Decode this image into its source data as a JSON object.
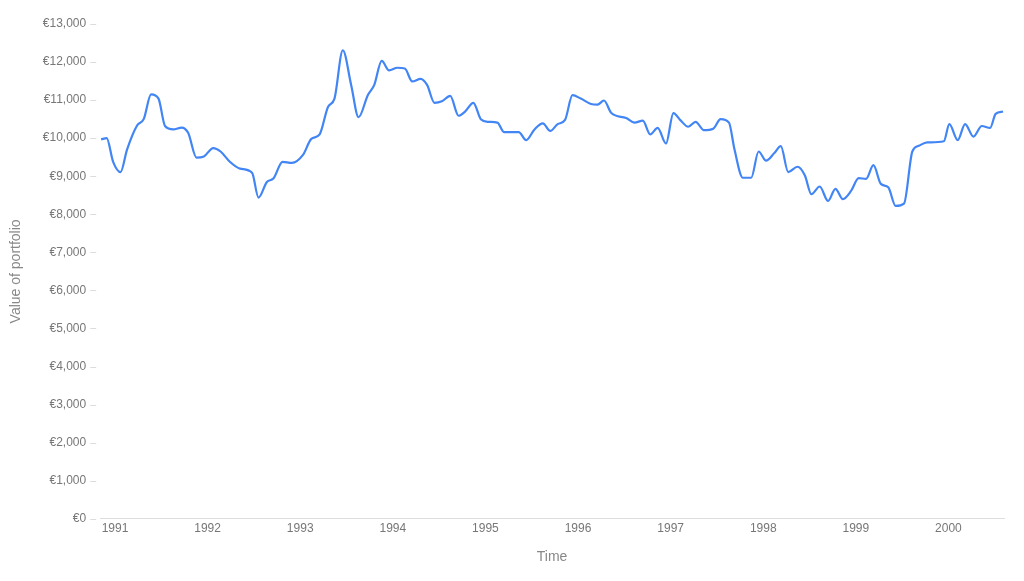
{
  "chart_data": {
    "type": "line",
    "xlabel": "Time",
    "ylabel": "Value of portfolio",
    "xlim": [
      1990.84,
      2000.6
    ],
    "xticks": [
      1991,
      1992,
      1993,
      1994,
      1995,
      1996,
      1997,
      1998,
      1999,
      2000
    ],
    "ylim": [
      0,
      13000
    ],
    "yticks": [
      {
        "value": 0,
        "label": "€0"
      },
      {
        "value": 1000,
        "label": "€1,000"
      },
      {
        "value": 2000,
        "label": "€2,000"
      },
      {
        "value": 3000,
        "label": "€3,000"
      },
      {
        "value": 4000,
        "label": "€4,000"
      },
      {
        "value": 5000,
        "label": "€5,000"
      },
      {
        "value": 6000,
        "label": "€6,000"
      },
      {
        "value": 7000,
        "label": "€7,000"
      },
      {
        "value": 8000,
        "label": "€8,000"
      },
      {
        "value": 9000,
        "label": "€9,000"
      },
      {
        "value": 10000,
        "label": "€10,000"
      },
      {
        "value": 11000,
        "label": "€11,000"
      },
      {
        "value": 12000,
        "label": "€12,000"
      },
      {
        "value": 13000,
        "label": "€13,000"
      }
    ],
    "grid": false,
    "legend": false,
    "marker": "none",
    "line_style": "solid",
    "series": [
      {
        "color": "#4285f4",
        "x": [
          1990.85,
          1990.91,
          1990.98,
          1991.06,
          1991.13,
          1991.24,
          1991.31,
          1991.39,
          1991.47,
          1991.54,
          1991.63,
          1991.72,
          1991.79,
          1991.88,
          1991.96,
          1992.06,
          1992.14,
          1992.24,
          1992.35,
          1992.48,
          1992.55,
          1992.64,
          1992.71,
          1992.81,
          1992.91,
          1993.03,
          1993.12,
          1993.21,
          1993.3,
          1993.37,
          1993.46,
          1993.55,
          1993.63,
          1993.73,
          1993.8,
          1993.88,
          1993.96,
          1994.05,
          1994.13,
          1994.21,
          1994.3,
          1994.37,
          1994.45,
          1994.53,
          1994.62,
          1994.71,
          1994.78,
          1994.87,
          1994.95,
          1995.03,
          1995.13,
          1995.2,
          1995.36,
          1995.44,
          1995.53,
          1995.62,
          1995.7,
          1995.78,
          1995.86,
          1995.94,
          1996.03,
          1996.14,
          1996.21,
          1996.28,
          1996.36,
          1996.52,
          1996.61,
          1996.7,
          1996.78,
          1996.86,
          1996.95,
          1997.03,
          1997.11,
          1997.19,
          1997.27,
          1997.36,
          1997.46,
          1997.54,
          1997.63,
          1997.69,
          1997.78,
          1997.87,
          1997.95,
          1998.03,
          1998.12,
          1998.19,
          1998.27,
          1998.37,
          1998.45,
          1998.52,
          1998.61,
          1998.7,
          1998.78,
          1998.86,
          1998.95,
          1999.03,
          1999.11,
          1999.19,
          1999.27,
          1999.35,
          1999.43,
          1999.52,
          1999.61,
          1999.68,
          1999.77,
          1999.95,
          2000.01,
          2000.1,
          2000.18,
          2000.27,
          2000.36,
          2000.45,
          2000.51,
          2000.59
        ],
        "values": [
          9970,
          10000,
          9380,
          9110,
          9700,
          10340,
          10500,
          11150,
          11040,
          10320,
          10230,
          10280,
          10140,
          9490,
          9520,
          9740,
          9650,
          9380,
          9200,
          9090,
          8440,
          8850,
          8940,
          9380,
          9350,
          9560,
          9980,
          10100,
          10820,
          11040,
          12310,
          11400,
          10550,
          11130,
          11400,
          12030,
          11780,
          11850,
          11830,
          11490,
          11560,
          11400,
          10930,
          10970,
          11110,
          10590,
          10700,
          10930,
          10500,
          10430,
          10410,
          10160,
          10160,
          9950,
          10230,
          10390,
          10190,
          10370,
          10480,
          11130,
          11040,
          10900,
          10880,
          10990,
          10660,
          10530,
          10410,
          10460,
          10100,
          10270,
          9860,
          10660,
          10460,
          10300,
          10430,
          10210,
          10250,
          10500,
          10410,
          9700,
          8960,
          8960,
          9650,
          9410,
          9610,
          9790,
          9110,
          9250,
          9020,
          8530,
          8730,
          8350,
          8670,
          8400,
          8620,
          8950,
          8930,
          9290,
          8800,
          8710,
          8220,
          8280,
          9650,
          9800,
          9890,
          9920,
          10370,
          9950,
          10370,
          10040,
          10320,
          10270,
          10640,
          10700
        ]
      }
    ]
  }
}
